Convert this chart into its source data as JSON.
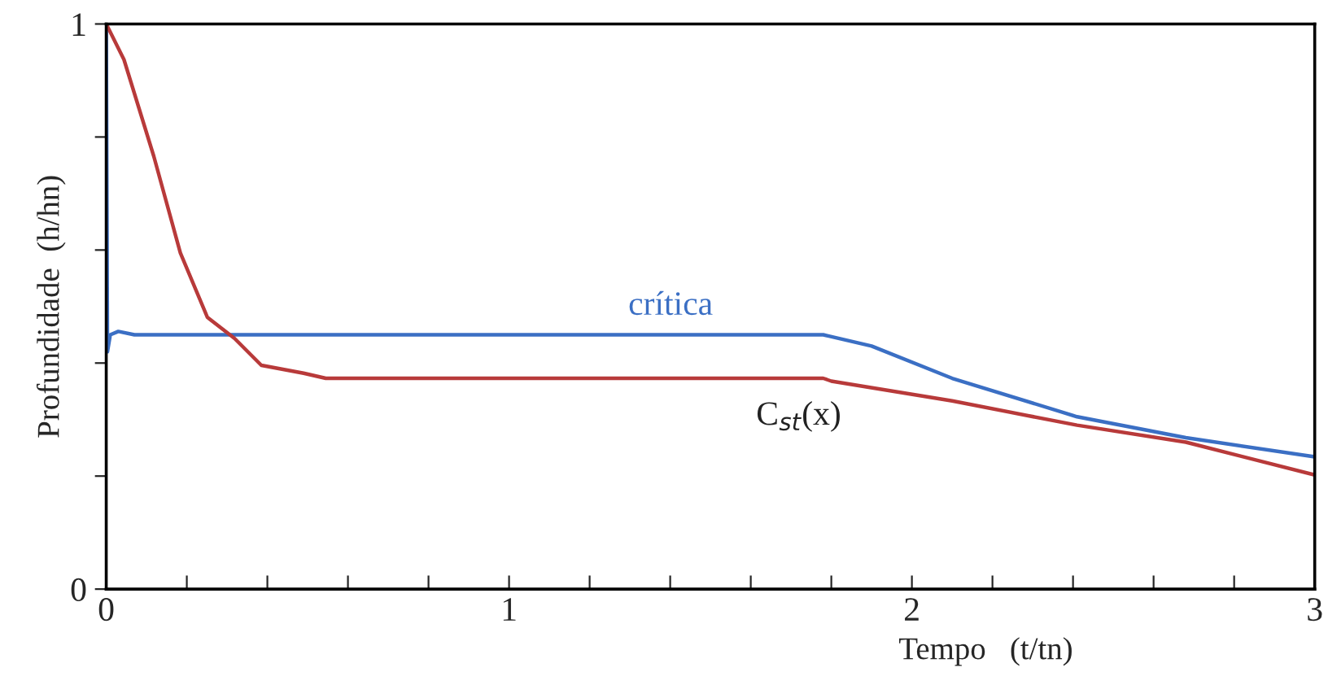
{
  "chart_data": {
    "type": "line",
    "xlabel": "Tempo   (t/tn)",
    "ylabel": "Profundidade  (h/hn)",
    "xlim": [
      0,
      3
    ],
    "ylim": [
      0,
      1
    ],
    "xticks": [
      0,
      {
        "value": 0.2,
        "label": null
      },
      {
        "value": 0.4,
        "label": null
      },
      {
        "value": 0.6,
        "label": null
      },
      {
        "value": 0.8,
        "label": null
      },
      1,
      {
        "value": 1.2,
        "label": null
      },
      {
        "value": 1.4,
        "label": null
      },
      {
        "value": 1.6,
        "label": null
      },
      {
        "value": 1.8,
        "label": null
      },
      2,
      {
        "value": 2.2,
        "label": null
      },
      {
        "value": 2.4,
        "label": null
      },
      {
        "value": 2.6,
        "label": null
      },
      {
        "value": 2.8,
        "label": null
      },
      3
    ],
    "yticks": [
      0,
      {
        "value": 0.2,
        "label": null
      },
      {
        "value": 0.4,
        "label": null
      },
      {
        "value": 0.6,
        "label": null
      },
      {
        "value": 0.8,
        "label": null
      },
      1
    ],
    "grid": false,
    "legend": false,
    "marker": "none",
    "line_style": "solid",
    "series": [
      {
        "color": "#3b6fc4",
        "x": [
          0,
          0.003,
          0.01,
          0.03,
          0.07,
          0.5,
          1.0,
          1.5,
          1.78,
          1.9,
          2.1,
          2.41,
          2.68,
          3.0
        ],
        "values": [
          1,
          0.42,
          0.45,
          0.456,
          0.45,
          0.45,
          0.45,
          0.45,
          0.45,
          0.43,
          0.373,
          0.305,
          0.268,
          0.234
        ]
      },
      {
        "color": "#b83a3a",
        "x": [
          0,
          0.044,
          0.118,
          0.184,
          0.251,
          0.318,
          0.385,
          0.49,
          0.545,
          1.0,
          1.5,
          1.78,
          1.8,
          2.1,
          2.41,
          2.68,
          3.0
        ],
        "values": [
          1,
          0.937,
          0.766,
          0.595,
          0.481,
          0.444,
          0.396,
          0.382,
          0.373,
          0.373,
          0.373,
          0.373,
          0.368,
          0.333,
          0.29,
          0.26,
          0.202
        ]
      }
    ],
    "annotations": [
      "crítica",
      "C$_{st}$(x)"
    ]
  }
}
